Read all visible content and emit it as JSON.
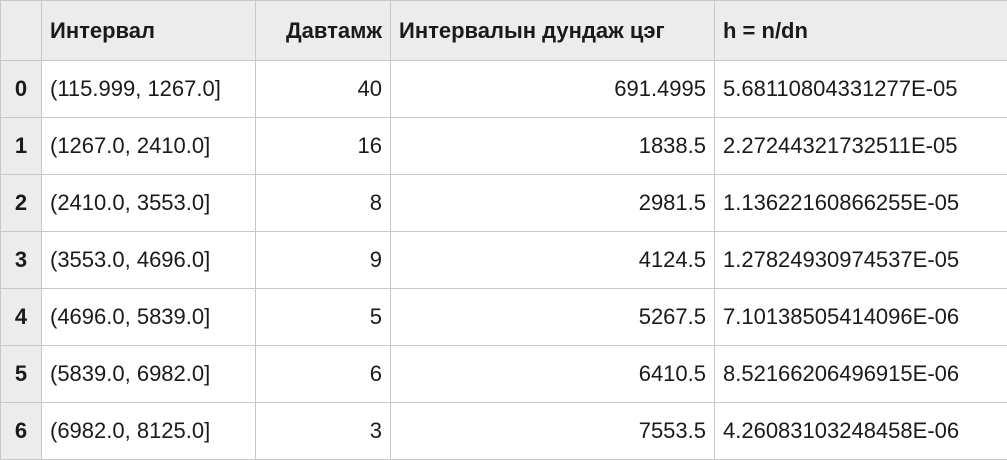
{
  "table": {
    "columns": {
      "interval": "Интервал",
      "frequency": "Давтамж",
      "midpoint": "Интервалын дундаж цэг",
      "density": "h = n/dn"
    },
    "rows": [
      {
        "index": "0",
        "interval": "(115.999, 1267.0]",
        "frequency": "40",
        "midpoint": "691.4995",
        "density": "5.68110804331277E-05"
      },
      {
        "index": "1",
        "interval": "(1267.0, 2410.0]",
        "frequency": "16",
        "midpoint": "1838.5",
        "density": "2.27244321732511E-05"
      },
      {
        "index": "2",
        "interval": "(2410.0, 3553.0]",
        "frequency": "8",
        "midpoint": "2981.5",
        "density": "1.13622160866255E-05"
      },
      {
        "index": "3",
        "interval": "(3553.0, 4696.0]",
        "frequency": "9",
        "midpoint": "4124.5",
        "density": "1.27824930974537E-05"
      },
      {
        "index": "4",
        "interval": "(4696.0, 5839.0]",
        "frequency": "5",
        "midpoint": "5267.5",
        "density": "7.10138505414096E-06"
      },
      {
        "index": "5",
        "interval": "(5839.0, 6982.0]",
        "frequency": "6",
        "midpoint": "6410.5",
        "density": "8.52166206496915E-06"
      },
      {
        "index": "6",
        "interval": "(6982.0, 8125.0]",
        "frequency": "3",
        "midpoint": "7553.5",
        "density": "4.26083103248458E-06"
      }
    ]
  },
  "colors": {
    "header_bg": "#ececec",
    "grid_line": "#c8c8c8",
    "text": "#1a1a1a"
  }
}
